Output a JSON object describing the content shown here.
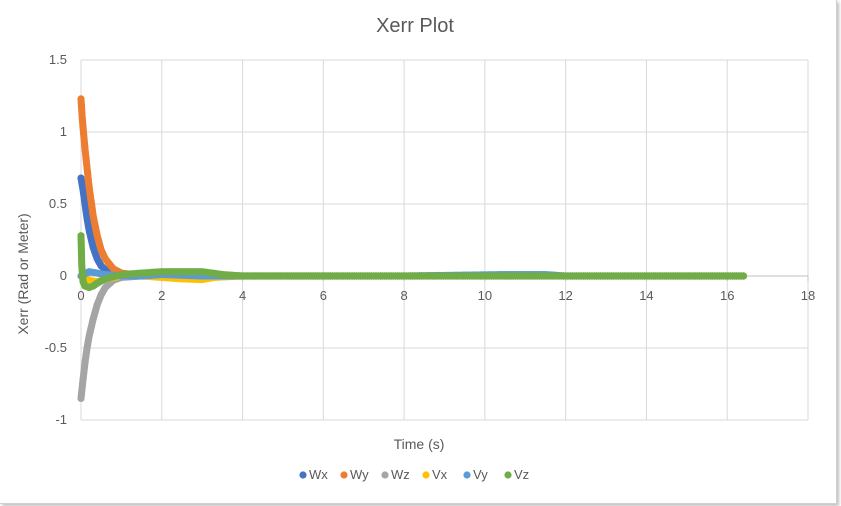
{
  "chart_data": {
    "type": "scatter",
    "title": "Xerr Plot",
    "xlabel": "Time (s)",
    "ylabel": "Xerr (Rad  or Meter)",
    "xlim": [
      0,
      18
    ],
    "ylim": [
      -1,
      1.5
    ],
    "x_ticks": [
      "0",
      "2",
      "4",
      "6",
      "8",
      "10",
      "12",
      "14",
      "16",
      "18"
    ],
    "y_ticks": [
      "1.5",
      "1",
      "0.5",
      "0",
      "-0.5",
      "-1"
    ],
    "grid": true,
    "legend_position": "bottom",
    "series": [
      {
        "name": "Wx",
        "color": "#4472C4",
        "x": [
          0,
          0.05,
          0.1,
          0.15,
          0.2,
          0.3,
          0.4,
          0.5,
          0.7,
          1.0,
          1.5,
          2.0,
          3.0,
          5.0,
          8.0,
          12.0,
          16.4
        ],
        "y": [
          0.68,
          0.6,
          0.5,
          0.4,
          0.32,
          0.2,
          0.12,
          0.07,
          0.02,
          0.0,
          0.0,
          0.0,
          0.0,
          0.0,
          0.0,
          0.0,
          0.0
        ]
      },
      {
        "name": "Wy",
        "color": "#ED7D31",
        "x": [
          0,
          0.03,
          0.06,
          0.1,
          0.15,
          0.2,
          0.3,
          0.4,
          0.5,
          0.6,
          0.8,
          1.0,
          1.3,
          2.0,
          3.0,
          5.0,
          8.0,
          12.0,
          16.4
        ],
        "y": [
          1.23,
          1.1,
          1.0,
          0.88,
          0.75,
          0.62,
          0.42,
          0.28,
          0.18,
          0.12,
          0.05,
          0.02,
          0.01,
          0.0,
          0.0,
          0.0,
          0.0,
          0.0,
          0.0
        ]
      },
      {
        "name": "Wz",
        "color": "#A5A5A5",
        "x": [
          0,
          0.05,
          0.1,
          0.15,
          0.2,
          0.3,
          0.4,
          0.5,
          0.6,
          0.8,
          1.0,
          1.5,
          2.0,
          3.0,
          5.0,
          8.0,
          12.0,
          16.4
        ],
        "y": [
          -0.85,
          -0.72,
          -0.6,
          -0.5,
          -0.42,
          -0.3,
          -0.2,
          -0.13,
          -0.08,
          -0.03,
          -0.01,
          0.0,
          0.0,
          0.0,
          0.0,
          0.0,
          0.0,
          0.0
        ]
      },
      {
        "name": "Vx",
        "color": "#FFC000",
        "x": [
          0,
          0.2,
          0.4,
          0.6,
          1.0,
          1.5,
          2.0,
          2.5,
          3.0,
          3.3,
          4.0,
          6.0,
          10.0,
          16.4
        ],
        "y": [
          0.0,
          -0.03,
          -0.04,
          -0.02,
          0.0,
          0.0,
          -0.01,
          -0.02,
          -0.025,
          -0.01,
          0.0,
          0.0,
          0.0,
          0.0
        ]
      },
      {
        "name": "Vy",
        "color": "#5B9BD5",
        "x": [
          0,
          0.2,
          0.4,
          0.6,
          1.0,
          1.5,
          2.0,
          3.0,
          5.0,
          8.0,
          10.5,
          11.0,
          11.5,
          12.0,
          16.4
        ],
        "y": [
          0.0,
          0.03,
          0.02,
          0.01,
          0.0,
          0.0,
          0.01,
          0.0,
          0.0,
          0.0,
          0.01,
          0.01,
          0.01,
          0.0,
          0.0
        ]
      },
      {
        "name": "Vz",
        "color": "#70AD47",
        "x": [
          0,
          0.02,
          0.05,
          0.1,
          0.2,
          0.3,
          0.4,
          0.6,
          1.0,
          1.5,
          2.0,
          2.5,
          3.0,
          3.5,
          4.0,
          6.0,
          8.0,
          10.0,
          12.0,
          14.0,
          16.4
        ],
        "y": [
          0.28,
          0.07,
          -0.04,
          -0.07,
          -0.08,
          -0.07,
          -0.05,
          -0.02,
          0.01,
          0.02,
          0.03,
          0.03,
          0.03,
          0.01,
          0.0,
          0.0,
          0.0,
          0.0,
          0.0,
          0.0,
          0.0
        ]
      }
    ]
  }
}
